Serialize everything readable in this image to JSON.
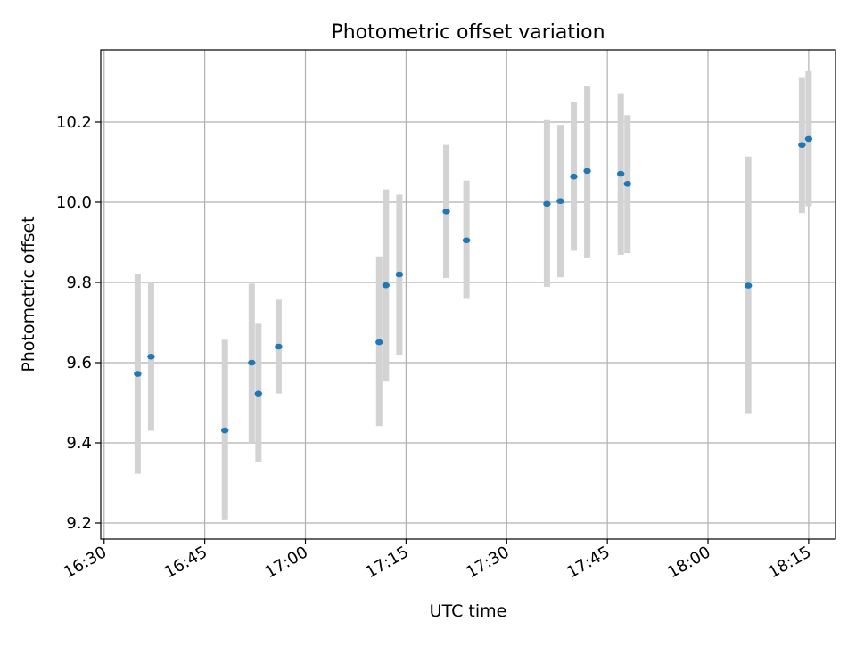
{
  "chart_data": {
    "type": "scatter",
    "title": "Photometric offset variation",
    "xlabel": "UTC time",
    "ylabel": "Photometric offset",
    "xlim": [
      "16:29.5",
      "18:19"
    ],
    "ylim": [
      9.16,
      10.38
    ],
    "x_ticks": [
      "16:30",
      "16:45",
      "17:00",
      "17:15",
      "17:30",
      "17:45",
      "18:00",
      "18:15"
    ],
    "y_ticks": [
      9.2,
      9.4,
      9.6,
      9.8,
      10.0,
      10.2
    ],
    "y_tick_labels": [
      "9.2",
      "9.4",
      "9.6",
      "9.8",
      "10.0",
      "10.2"
    ],
    "grid": true,
    "colors": {
      "marker": "#1f77b4",
      "errorbar": "#d3d3d3",
      "grid": "#b0b0b0"
    },
    "points": [
      {
        "time": "16:35",
        "y": 9.572,
        "ylow": 9.323,
        "yhigh": 9.822
      },
      {
        "time": "16:37",
        "y": 9.615,
        "ylow": 9.43,
        "yhigh": 9.8
      },
      {
        "time": "16:48",
        "y": 9.431,
        "ylow": 9.207,
        "yhigh": 9.657
      },
      {
        "time": "16:52",
        "y": 9.6,
        "ylow": 9.4,
        "yhigh": 9.797
      },
      {
        "time": "16:53",
        "y": 9.523,
        "ylow": 9.353,
        "yhigh": 9.697
      },
      {
        "time": "16:56",
        "y": 9.64,
        "ylow": 9.523,
        "yhigh": 9.757
      },
      {
        "time": "17:11",
        "y": 9.651,
        "ylow": 9.442,
        "yhigh": 9.865
      },
      {
        "time": "17:12",
        "y": 9.793,
        "ylow": 9.553,
        "yhigh": 10.032
      },
      {
        "time": "17:14",
        "y": 9.82,
        "ylow": 9.62,
        "yhigh": 10.019
      },
      {
        "time": "17:21",
        "y": 9.977,
        "ylow": 9.811,
        "yhigh": 10.143
      },
      {
        "time": "17:24",
        "y": 9.905,
        "ylow": 9.759,
        "yhigh": 10.054
      },
      {
        "time": "17:36",
        "y": 9.996,
        "ylow": 9.789,
        "yhigh": 10.205
      },
      {
        "time": "17:38",
        "y": 10.003,
        "ylow": 9.813,
        "yhigh": 10.193
      },
      {
        "time": "17:40",
        "y": 10.064,
        "ylow": 9.879,
        "yhigh": 10.249
      },
      {
        "time": "17:42",
        "y": 10.078,
        "ylow": 9.861,
        "yhigh": 10.29
      },
      {
        "time": "17:47",
        "y": 10.071,
        "ylow": 9.869,
        "yhigh": 10.272
      },
      {
        "time": "17:48",
        "y": 10.046,
        "ylow": 9.873,
        "yhigh": 10.217
      },
      {
        "time": "18:06",
        "y": 9.792,
        "ylow": 9.472,
        "yhigh": 10.114
      },
      {
        "time": "18:14",
        "y": 10.143,
        "ylow": 9.973,
        "yhigh": 10.312
      },
      {
        "time": "18:15",
        "y": 10.158,
        "ylow": 9.99,
        "yhigh": 10.327
      }
    ]
  }
}
